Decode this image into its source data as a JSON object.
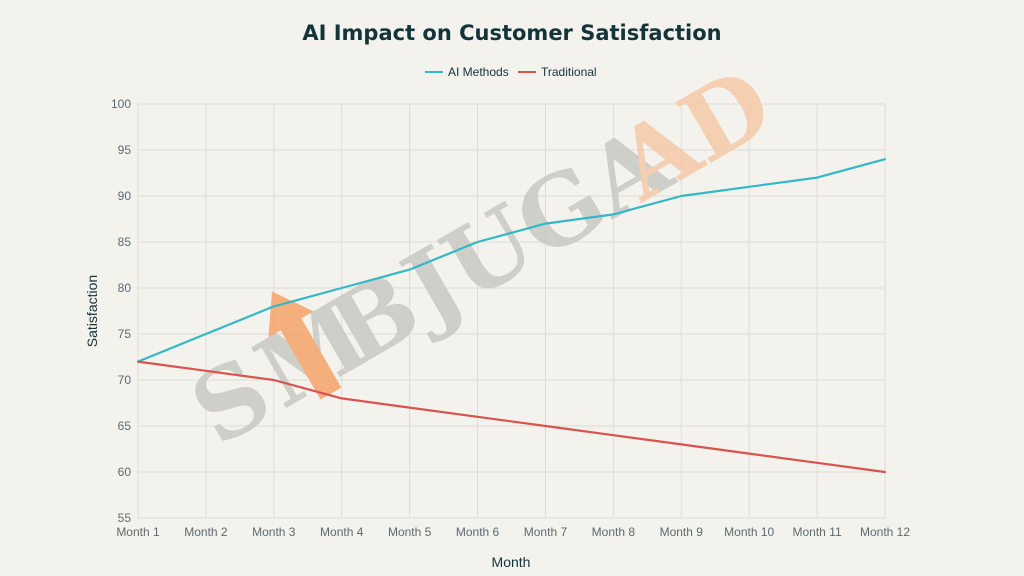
{
  "chart_data": {
    "type": "line",
    "title": "AI Impact on Customer Satisfaction",
    "xlabel": "Month",
    "ylabel": "Satisfaction",
    "categories": [
      "Month 1",
      "Month 2",
      "Month 3",
      "Month 4",
      "Month 5",
      "Month 6",
      "Month 7",
      "Month 8",
      "Month 9",
      "Month 10",
      "Month 11",
      "Month 12"
    ],
    "ylim": [
      55,
      100
    ],
    "yticks": [
      55,
      60,
      65,
      70,
      75,
      80,
      85,
      90,
      95,
      100
    ],
    "grid": true,
    "legend_position": "top-center",
    "series": [
      {
        "name": "AI Methods",
        "color": "#32b8c6",
        "values": [
          72,
          75,
          78,
          80,
          82,
          85,
          87,
          88,
          90,
          91,
          92,
          94
        ]
      },
      {
        "name": "Traditional",
        "color": "#d9534f",
        "values": [
          72,
          71,
          70,
          68,
          67,
          66,
          65,
          64,
          63,
          62,
          61,
          60
        ]
      }
    ]
  },
  "watermark": {
    "text_a": "S",
    "text_b": "M",
    "text_c": "B",
    "text_d": "JUGA",
    "text_e": "AD",
    "gray_color": "#c9c9c4",
    "orange_color": "#f6c9a8",
    "arrow_color": "#f5a46a"
  }
}
